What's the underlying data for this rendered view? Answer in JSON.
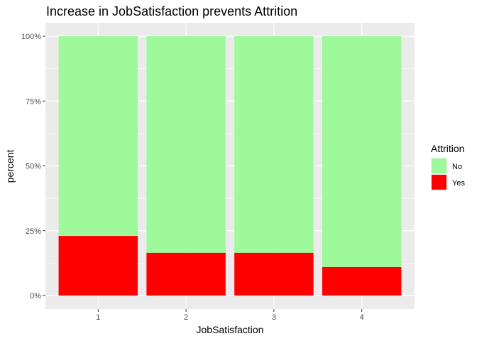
{
  "chart_data": {
    "type": "bar",
    "stacked": true,
    "title": "Increase in JobSatisfaction prevents Attrition",
    "xlabel": "JobSatisfaction",
    "ylabel": "percent",
    "categories": [
      "1",
      "2",
      "3",
      "4"
    ],
    "ylim": [
      0,
      1
    ],
    "y_ticks": [
      0,
      0.25,
      0.5,
      0.75,
      1
    ],
    "y_tick_labels": [
      "0%",
      "25%",
      "50%",
      "75%",
      "100%"
    ],
    "grid": true,
    "legend": {
      "title": "Attrition",
      "position": "right",
      "entries": [
        "No",
        "Yes"
      ]
    },
    "series": [
      {
        "name": "No",
        "color": "#9ef99a",
        "values": [
          0.77,
          0.835,
          0.835,
          0.89
        ]
      },
      {
        "name": "Yes",
        "color": "#ff0000",
        "values": [
          0.23,
          0.165,
          0.165,
          0.11
        ]
      }
    ],
    "colors": {
      "panel_background": "#ebebeb",
      "grid": "#ffffff"
    }
  }
}
